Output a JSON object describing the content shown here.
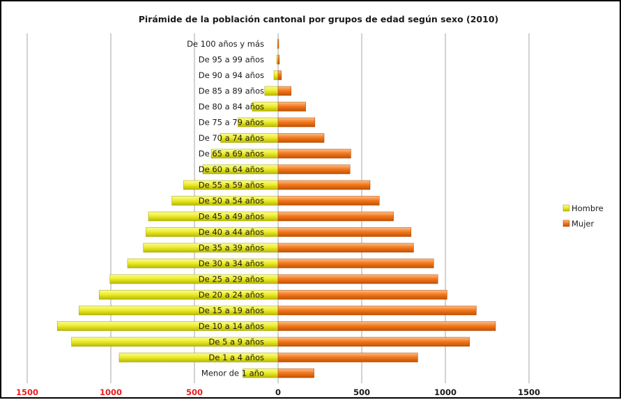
{
  "chart_data": {
    "type": "bar",
    "orientation": "horizontal",
    "title": "Pirámide de la población cantonal por grupos de edad según sexo (2010)",
    "categories": [
      "Menor de 1 año",
      "De 1 a 4 años",
      "De 5 a 9 años",
      "De 10 a 14 años",
      "De 15 a 19 años",
      "De 20 a 24 años",
      "De 25 a 29 años",
      "De 30 a 34 años",
      "De 35 a 39 años",
      "De 40 a 44 años",
      "De 45 a 49 años",
      "De 50 a 54 años",
      "De 55 a 59 años",
      "De 60 a 64 años",
      "De 65 a 69 años",
      "De 70 a 74 años",
      "De 75 a 79 años",
      "De 80 a 84 años",
      "De 85 a 89 años",
      "De 90 a 94 años",
      "De 95 a 99 años",
      "De 100 años y más"
    ],
    "series": [
      {
        "name": "Hombre",
        "color": "#e8e82a",
        "values": [
          210,
          950,
          1235,
          1320,
          1190,
          1070,
          1005,
          900,
          805,
          790,
          775,
          635,
          565,
          450,
          400,
          345,
          240,
          155,
          80,
          25,
          8,
          4
        ]
      },
      {
        "name": "Mujer",
        "color": "#f47a20",
        "values": [
          215,
          835,
          1145,
          1300,
          1185,
          1010,
          955,
          930,
          810,
          795,
          690,
          605,
          550,
          430,
          435,
          275,
          220,
          165,
          78,
          20,
          8,
          4
        ]
      }
    ],
    "xlim": [
      -1500,
      1500
    ],
    "xticks": [
      {
        "value": -1500,
        "label": "1500"
      },
      {
        "value": -1000,
        "label": "1000"
      },
      {
        "value": -500,
        "label": "500"
      },
      {
        "value": 0,
        "label": "0"
      },
      {
        "value": 500,
        "label": "500"
      },
      {
        "value": 1000,
        "label": "1000"
      },
      {
        "value": 1500,
        "label": "1500"
      }
    ],
    "negative_tick_color": "#e81d1d",
    "positive_tick_color": "#1a1a1a",
    "grid": true,
    "legend": {
      "position": "right",
      "entries": [
        "Hombre",
        "Mujer"
      ]
    }
  }
}
